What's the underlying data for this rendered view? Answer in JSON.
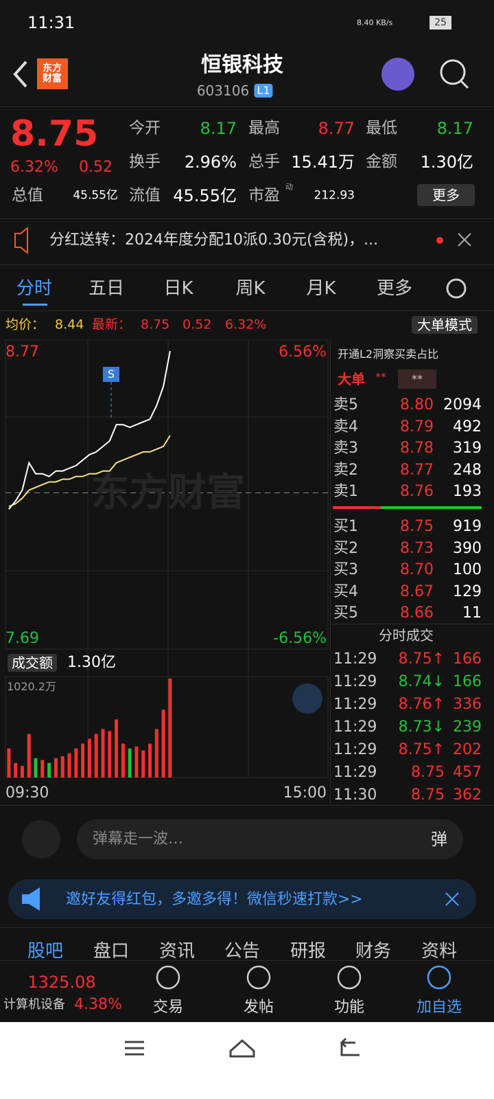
{
  "status": {
    "time": "11:31",
    "net": "8.40 KB/s",
    "battery": "25"
  },
  "header": {
    "logo": "东方财富",
    "title": "恒银科技",
    "code": "603106",
    "badge": "L1"
  },
  "quote": {
    "price": "8.75",
    "change_pct": "6.32%",
    "change": "0.52",
    "more": "更多",
    "fields": [
      {
        "label": "今开",
        "value": "8.17"
      },
      {
        "label": "最高",
        "value": "8.77"
      },
      {
        "label": "最低",
        "value": "8.17"
      },
      {
        "label": "换手",
        "value": "2.96%"
      },
      {
        "label": "总手",
        "value": "15.41万"
      },
      {
        "label": "金额",
        "value": "1.30亿"
      },
      {
        "label": "总值",
        "value": "45.55亿"
      },
      {
        "label": "流值",
        "value": "45.55亿"
      },
      {
        "label": "市盈",
        "sup": "动",
        "value": "212.93"
      }
    ]
  },
  "notice": "分红送转：2024年度分配10派0.30元(含税)，...",
  "tabs": [
    "分时",
    "五日",
    "日K",
    "周K",
    "月K",
    "更多"
  ],
  "info": {
    "avg_label": "均价：",
    "avg": "8.44",
    "last_label": "最新：",
    "last": "8.75",
    "change": "0.52",
    "change_pct": "6.32%",
    "mode": "大单模式"
  },
  "intraday": {
    "ylim": [
      7.69,
      8.77
    ],
    "pct_top": "6.56%",
    "pct_bottom": "-6.56%",
    "prev_close": 8.23,
    "watermark": "东方财富",
    "signal": "S",
    "price": [
      8.17,
      8.2,
      8.24,
      8.34,
      8.3,
      8.3,
      8.29,
      8.31,
      8.31,
      8.32,
      8.33,
      8.35,
      8.37,
      8.38,
      8.4,
      8.42,
      8.48,
      8.48,
      8.47,
      8.48,
      8.49,
      8.5,
      8.55,
      8.62,
      8.75
    ],
    "avg": [
      8.18,
      8.19,
      8.21,
      8.24,
      8.25,
      8.26,
      8.27,
      8.27,
      8.28,
      8.28,
      8.29,
      8.29,
      8.3,
      8.3,
      8.31,
      8.31,
      8.34,
      8.35,
      8.36,
      8.37,
      8.38,
      8.38,
      8.39,
      8.4,
      8.44
    ],
    "volume_label": "成交额",
    "volume_total": "1.30亿",
    "vol_max": {
      "value": 1020.2,
      "label": "1020.2万"
    },
    "volume": [
      300,
      150,
      120,
      450,
      200,
      180,
      150,
      200,
      220,
      250,
      300,
      350,
      400,
      450,
      500,
      480,
      600,
      350,
      300,
      320,
      280,
      350,
      500,
      700,
      1020.2
    ],
    "x_start": "09:30",
    "x_end": "15:00"
  },
  "orderbook": {
    "promo": "开通L2洞察买卖占比",
    "big": "大单",
    "mask1": "**",
    "mask2": "**",
    "asks": [
      [
        "卖5",
        "8.80",
        "2094"
      ],
      [
        "卖4",
        "8.79",
        "492"
      ],
      [
        "卖3",
        "8.78",
        "319"
      ],
      [
        "卖2",
        "8.77",
        "248"
      ],
      [
        "卖1",
        "8.76",
        "193"
      ]
    ],
    "bids": [
      [
        "买1",
        "8.75",
        "919"
      ],
      [
        "买2",
        "8.73",
        "390"
      ],
      [
        "买3",
        "8.70",
        "100"
      ],
      [
        "买4",
        "8.67",
        "129"
      ],
      [
        "买5",
        "8.66",
        "11"
      ]
    ]
  },
  "trades": {
    "title": "分时成交",
    "rows": [
      [
        "11:29",
        "8.75↑",
        "166"
      ],
      [
        "11:29",
        "8.74↓",
        "166"
      ],
      [
        "11:29",
        "8.76↑",
        "336"
      ],
      [
        "11:29",
        "8.73↓",
        "239"
      ],
      [
        "11:29",
        "8.75↑",
        "202"
      ],
      [
        "11:29",
        "8.75",
        "457"
      ],
      [
        "11:30",
        "8.75",
        "362"
      ]
    ]
  },
  "comment": {
    "placeholder": "弹幕走一波…",
    "button": "弹"
  },
  "banner": "邀好友得红包，多邀多得！微信秒速打款>>",
  "sections": [
    "股吧",
    "盘口",
    "资讯",
    "公告",
    "研报",
    "财务",
    "资料"
  ],
  "bottom": {
    "index_value": "1325.08",
    "sector": "计算机设备",
    "sector_pct": "4.38%",
    "actions": [
      "交易",
      "发帖",
      "功能",
      "加自选"
    ]
  }
}
